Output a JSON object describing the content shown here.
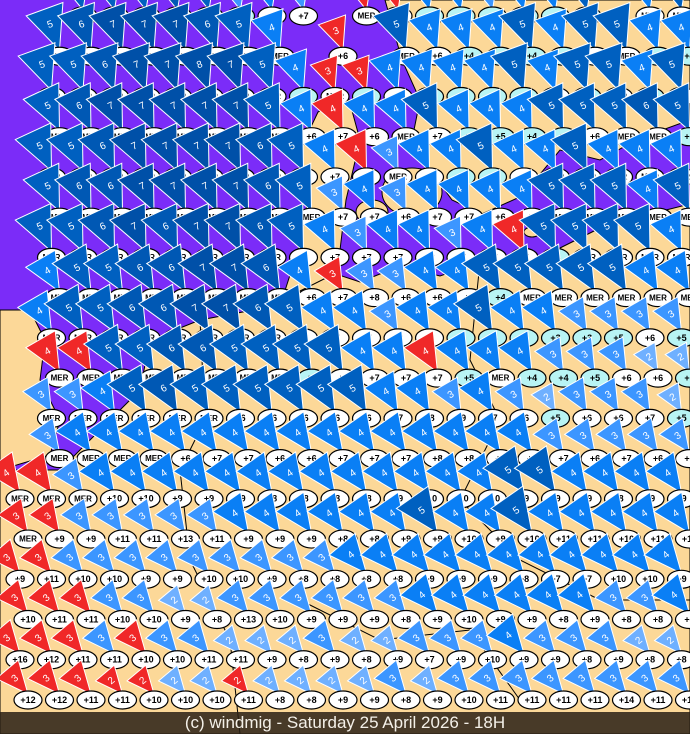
{
  "caption": "(c) windmig - Saturday 25 April 2026 - 18H",
  "colors": {
    "sea": "#7b2cf8",
    "land": "#fcd898",
    "border": "#000000",
    "wind_2": "#6fb0ff",
    "wind_3": "#3c96ff",
    "wind_4": "#0a7ff5",
    "wind_5": "#0060c0",
    "wind_6": "#0058b4",
    "wind_7": "#0050a8",
    "wind_red": "#f02828",
    "temp_oval": "#ffffff",
    "temp_oval_cold": "#b8f4f4"
  },
  "legend_note": "each station: wind force triangle (Beaufort) + temperature oval; MER = sea station",
  "stations": {
    "rows": [
      {
        "dir": -15,
        "cells": "- - 5,MER 5,MER 5,MER 6,MER 5,+4 3,+5 4,+8 3,+7 - 2r,MER 4r,MER 4,+5 4,+4 3,+4 4,+3 4,+5 5,+5 - 4,MER 5,MER"
      },
      {
        "dir": -20,
        "cells": "- 5,MER 6,MER 7,MER 7,MER 7,MER 6,MER 5,MER 4,MER - 3r,+6 - 5,MER 4,+6 4,+4 4,+4 5,+4 4,+5 5,+6 5,MER 4,+4 4,+4"
      },
      {
        "dir": -20,
        "cells": "- 5,MER 5,MER 6,MER 7,MER 7,MER 8,MER 7,MER 5,MER 4,+4 3r,MER 3r,+2 4,+6 4,+5 4,+4 4,+4 5,+3 4,+6 5,+5 5,MER 4,+5 5,+6"
      },
      {
        "dir": -25,
        "cells": "- 5,MER 6,MER 7,MER 7,MER 7,MER 7,MER 7,MER 5,MER 4,+6 4r,+7 4,+6 4,MER 5,+7 4,+5 4,+5 4,+4 5,+4 5,+6 5,MER 6,MER 5,+5"
      },
      {
        "dir": -25,
        "cells": "- 5,MER 5,MER 6,MER 7,MER 7,MER 7,MER 7,MER 6,MER 5,+6 4,+7 4r,+6 3,MER 4,+7 4,+5 5,+5 4,+6 4,MER 5,MER 4,MER 4,MER 4,MER"
      },
      {
        "dir": -25,
        "cells": "- 5,MER 6,MER 6,MER 7,MER 7,MER 7,MER 7,MER 6,MER 5,MER 3,+7 4,+7 3,+6 4,+7 4,+7 4,+6 4,+6 5,MER 5,MER 5,MER 4,MER 5,MER"
      },
      {
        "dir": -25,
        "cells": "- 5,MER 5,MER 6,MER 7,MER 6,MER 7,MER 7,MER 6,MER 5,+6 4,+7 3,+7 4,+7 4,+8 3,+7 4,+7 4r,+7 5,+4 5,MER 5,MER 5,MER 4,MER"
      },
      {
        "dir": -30,
        "cells": "- 4,MER 5,MER 5,MER 6,MER 6,MER 7,MER 7,MER 6,MER 4,+6 3r,+7 3,+8 3,+6 4,+6 4,+7 5,+4 5,MER 5,MER 5,MER 5,MER 4,MER 4,MER"
      },
      {
        "dir": -30,
        "cells": "- 4,MER 5,MER 5,MER 6,MER 6,MER 7,MER 7,MER 6,MER 5,+6 4,+7 4,+7 3,+8 4,+6 4,+5 5,+4 4,+3 4,+3 3,+3 3,+5 3,+6 3,+5"
      },
      {
        "dir": -30,
        "cells": "- 4r,MER 4r,MER 5,MER 5,MER 6,MER 6,MER 5,MER 5,MER 5,+5 5,+6 4,+7 4,+7 4r,+7 4,+5 4,MER 4,+4 3,+4 3,+5 3,+6 2,+6 2,+5"
      },
      {
        "dir": -30,
        "cells": "- 3,MER 3,MER 4,MER 5,MER 6,MER 5,MER 5,+6 5,+6 5,+6 5,+6 5,+6 4,+7 4,+8 3,+9 4,+7 3,+6 2,+5 3,+6 3,+6 3,+7 2,+5"
      },
      {
        "dir": -35,
        "cells": "- 3,MER 4,MER 4,MER 4,MER 4,+6 4,+7 4,+7 4,+6 4,+6 4,+7 4,+7 4,+7 4,+8 4,+8 4,+7 4,+8 3,+7 3,+6 3,+7 3,+6 3,+8"
      },
      {
        "dir": -35,
        "cells": "4r,MER 4r,MER 3,MER 4,+10 4,+10 4,+9 4,+9 4,+9 4,+8 4,+8 4,+8 4,+8 4,+9 4,+10 4,+10 4,+10 5,+9 5,+9 4,+9 4,+8 4,+9 4,+9"
      },
      {
        "dir": -35,
        "cells": "3r,MER 3r,+9 3,+9 3,+11 3,+11 3,+13 3,+11 4,+9 4,+9 4,+9 4,+8 4,+8 4,+9 5,+9 4,+10 4,+9 5,+10 4,+11 4,+11 4,+10 4,+11 4,+10"
      },
      {
        "dir": -40,
        "cells": "3r,+9 3r,+11 3,+10 3,+10 3,+9 3,+9 3,+10 3,+10 3,+9 3,+8 3,+8 4,+8 4,+8 4,+9 4,+9 4,+9 4,+8 4,+7 4,+7 4,+10 4,+10 4,+9"
      },
      {
        "dir": -40,
        "cells": "3r,+10 3r,+11 3r,+11 3,+10 3,+10 2,+9 2,+8 3,+13 3,+10 3,+9 3,+9 3,+9 3,+8 4,+9 4,+10 4,+9 4,+9 4,+8 4,+9 3,+8 3,+8 4,+8"
      },
      {
        "dir": -40,
        "cells": "3r,+16 3r,+12 3r,+11 3,+11 3r,+10 3,+10 3,+11 2,+11 2,+9 2,+8 3,+9 2,+8 2,+9 3,+7 3,+9 3,+10 4,+9 3,+9 3,+8 3,+9 2,+8 2,+8"
      },
      {
        "dir": -40,
        "cells": "3r,+12 3r,+12 3r,+11 2r,+11 2r,+10 2,+10 2,+10 2r,+11 2,+8 2,+8 2,+9 2,+9 3,+8 2,+9 3,+10 3,+11 3,+11 3,+11 3,+11 3,+14 3,+11 3,+12"
      }
    ]
  }
}
